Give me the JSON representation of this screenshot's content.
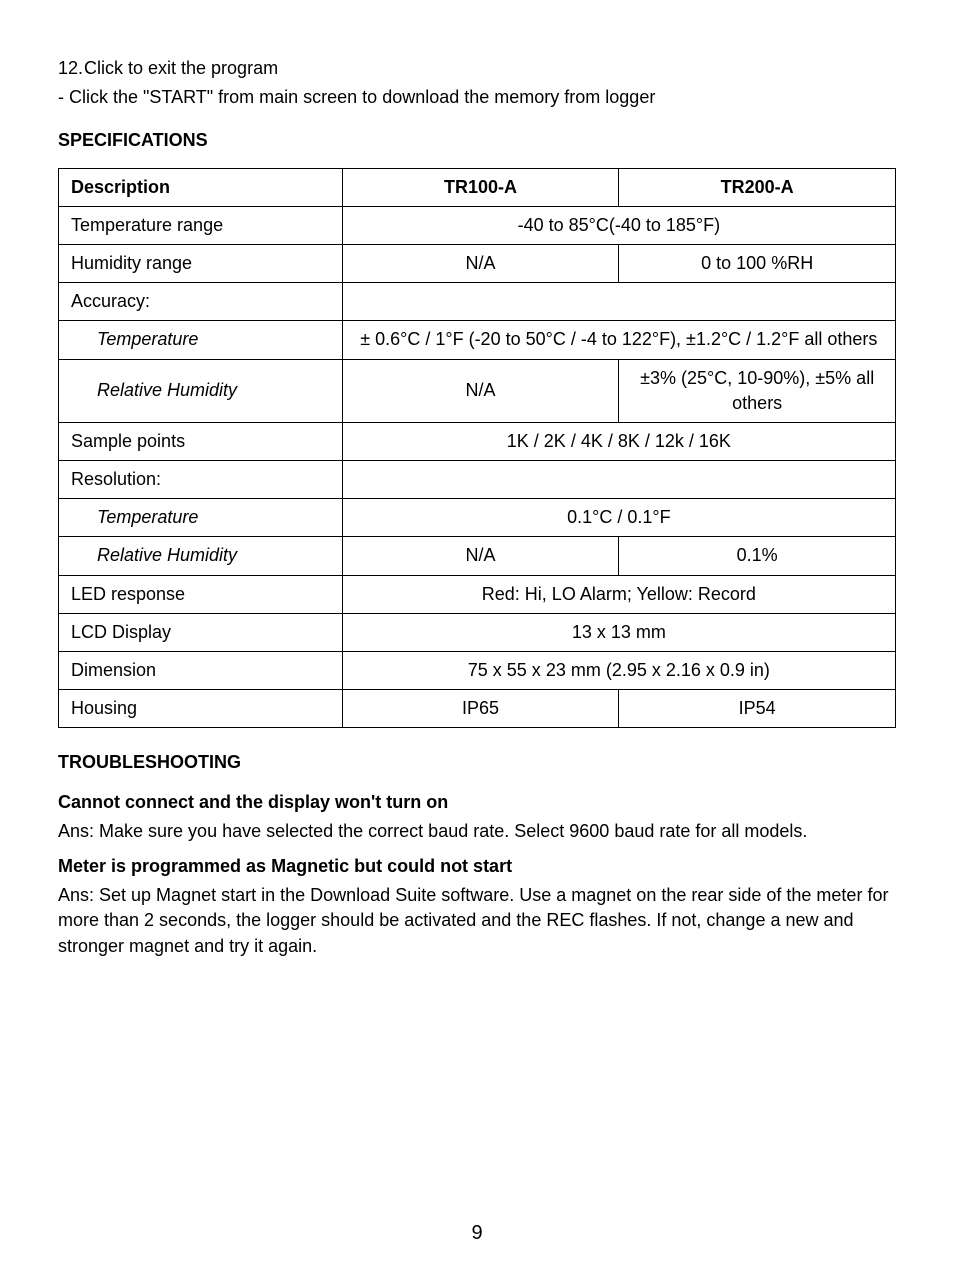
{
  "intro": {
    "list_number": "12.",
    "list_text": "Click to exit the program",
    "bullet_text": "- Click the \"START\" from main screen to download the memory from logger"
  },
  "spec_heading": "SPECIFICATIONS",
  "table": {
    "columns": [
      "Description",
      "TR100-A",
      "TR200-A"
    ],
    "rows": [
      {
        "label": "Temperature range",
        "indent": false,
        "span": true,
        "value": "-40 to 85°C(-40 to 185°F)"
      },
      {
        "label": "Humidity range",
        "indent": false,
        "span": false,
        "a": "N/A",
        "b": "0 to 100 %RH"
      },
      {
        "label": "Accuracy:",
        "indent": false,
        "span": true,
        "value": ""
      },
      {
        "label": "Temperature",
        "indent": true,
        "span": true,
        "value": "± 0.6°C / 1°F (-20 to 50°C / -4 to 122°F), ±1.2°C / 1.2°F all others"
      },
      {
        "label": "Relative Humidity",
        "indent": true,
        "span": false,
        "a": "N/A",
        "b": "±3% (25°C, 10-90%), ±5% all others"
      },
      {
        "label": "Sample points",
        "indent": false,
        "span": true,
        "value": "1K / 2K / 4K / 8K / 12k / 16K"
      },
      {
        "label": "Resolution:",
        "indent": false,
        "span": true,
        "value": ""
      },
      {
        "label": "Temperature",
        "indent": true,
        "span": true,
        "value": "0.1°C / 0.1°F"
      },
      {
        "label": "Relative Humidity",
        "indent": true,
        "span": false,
        "a": "N/A",
        "b": "0.1%"
      },
      {
        "label": "LED response",
        "indent": false,
        "span": true,
        "value": "Red: Hi, LO Alarm; Yellow: Record"
      },
      {
        "label": "LCD Display",
        "indent": false,
        "span": true,
        "value": "13 x 13 mm"
      },
      {
        "label": "Dimension",
        "indent": false,
        "span": true,
        "value": "75 x 55 x 23 mm (2.95 x 2.16 x 0.9 in)"
      },
      {
        "label": "Housing",
        "indent": false,
        "span": false,
        "a": "IP65",
        "b": "IP54"
      }
    ]
  },
  "troubleshooting_heading": "TROUBLESHOOTING",
  "qa": [
    {
      "q": "Cannot connect and the display won't turn on",
      "a": "Ans: Make sure you have selected the correct baud rate. Select 9600 baud rate for all models."
    },
    {
      "q": "Meter is programmed as Magnetic but could not start",
      "a": "Ans: Set up Magnet start in the Download Suite software. Use a magnet on the rear side of the meter for more than 2 seconds, the logger should be activated and the REC flashes. If not, change a new and stronger magnet and try it again."
    }
  ],
  "page_number": "9"
}
